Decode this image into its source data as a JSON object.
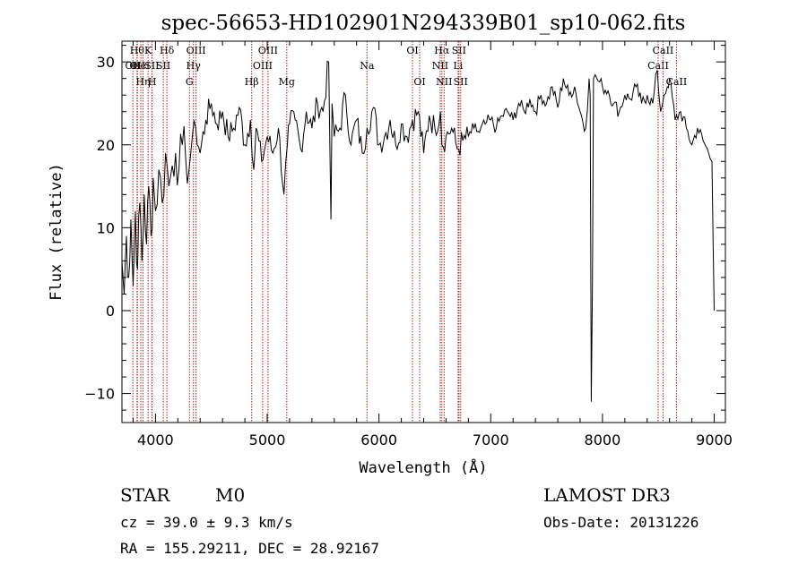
{
  "chart_data": {
    "type": "line",
    "title": "spec-56653-HD102901N294339B01_sp10-062.fits",
    "xlabel": "Wavelength (Å)",
    "ylabel": "Flux (relative)",
    "xlim": [
      3700,
      9100
    ],
    "ylim": [
      -13.5,
      32.5
    ],
    "x_ticks": [
      4000,
      5000,
      6000,
      7000,
      8000,
      9000
    ],
    "y_ticks": [
      -10,
      0,
      10,
      20,
      30
    ],
    "grid": false,
    "legend": "none",
    "series": [
      {
        "x": [
          3700,
          3720,
          3740,
          3760,
          3780,
          3800,
          3820,
          3840,
          3860,
          3880,
          3900,
          3920,
          3940,
          3960,
          3980,
          4000,
          4030,
          4060,
          4090,
          4120,
          4150,
          4180,
          4210,
          4240,
          4270,
          4300,
          4330,
          4360,
          4400,
          4450,
          4500,
          4550,
          4600,
          4650,
          4700,
          4750,
          4800,
          4850,
          4880,
          4900,
          4950,
          5000,
          5050,
          5100,
          5150,
          5180,
          5200,
          5250,
          5300,
          5350,
          5400,
          5450,
          5500,
          5550,
          5570,
          5580,
          5590,
          5600,
          5650,
          5700,
          5750,
          5800,
          5850,
          5893,
          5950,
          6000,
          6050,
          6100,
          6150,
          6200,
          6250,
          6300,
          6350,
          6400,
          6450,
          6500,
          6550,
          6563,
          6600,
          6650,
          6700,
          6750,
          6800,
          6850,
          6900,
          6950,
          7000,
          7050,
          7100,
          7150,
          7200,
          7250,
          7300,
          7350,
          7400,
          7450,
          7500,
          7550,
          7600,
          7650,
          7700,
          7750,
          7800,
          7850,
          7880,
          7890,
          7900,
          7910,
          7920,
          7950,
          8000,
          8050,
          8100,
          8150,
          8200,
          8250,
          8300,
          8350,
          8400,
          8450,
          8490,
          8520,
          8550,
          8580,
          8600,
          8650,
          8700,
          8750,
          8800,
          8850,
          8900,
          8950,
          8980,
          9000
        ],
        "y": [
          6,
          2,
          9,
          4,
          11,
          3,
          12,
          5,
          13,
          6,
          14,
          8,
          15,
          9,
          16,
          12,
          17,
          13,
          19,
          15,
          17.5,
          19,
          17,
          20,
          18.5,
          17,
          21,
          22,
          19,
          23,
          25,
          22.5,
          24,
          21,
          22,
          24.5,
          20,
          23,
          17,
          22,
          18,
          21,
          19,
          22,
          14,
          20,
          22.5,
          23,
          19.5,
          24,
          22,
          25,
          24,
          30,
          11,
          25,
          23,
          21,
          22,
          26,
          20,
          23,
          19,
          22,
          24.5,
          20,
          21,
          23,
          20,
          22.5,
          21,
          23,
          24,
          19,
          23.5,
          22,
          24,
          20,
          21,
          22,
          19.5,
          20.5,
          21,
          22,
          21.5,
          22.5,
          23,
          22,
          23.5,
          24,
          23,
          25,
          24,
          25.5,
          24,
          26,
          25,
          27,
          24.5,
          28,
          26,
          27,
          24,
          22,
          28,
          26,
          -11,
          3,
          28,
          28,
          27,
          26.5,
          25,
          24,
          26,
          25.5,
          27,
          25,
          26,
          25,
          29,
          24,
          26,
          27,
          28,
          23,
          24,
          22,
          20,
          22,
          20.5,
          19,
          18,
          0
        ]
      }
    ],
    "line_marks": [
      {
        "wl": 3798,
        "row": 1,
        "label": "OII"
      },
      {
        "wl": 3835,
        "row": 0,
        "label": "Hθ"
      },
      {
        "wl": 3838,
        "row": 1,
        "label": "OII"
      },
      {
        "wl": 3869,
        "row": 1,
        "label": "HeI"
      },
      {
        "wl": 3889,
        "row": 2,
        "label": "Hη"
      },
      {
        "wl": 3934,
        "row": 0,
        "label": "K"
      },
      {
        "wl": 3968,
        "row": 1,
        "label": "SII"
      },
      {
        "wl": 3970,
        "row": 2,
        "label": "H"
      },
      {
        "wl": 4102,
        "row": 0,
        "label": "Hδ"
      },
      {
        "wl": 4070,
        "row": 1,
        "label": "SII"
      },
      {
        "wl": 4304,
        "row": 2,
        "label": "G"
      },
      {
        "wl": 4340,
        "row": 1,
        "label": "Hγ"
      },
      {
        "wl": 4363,
        "row": 0,
        "label": "OIII"
      },
      {
        "wl": 4861,
        "row": 2,
        "label": "Hβ"
      },
      {
        "wl": 4959,
        "row": 1,
        "label": "OIII"
      },
      {
        "wl": 5007,
        "row": 0,
        "label": "OIII"
      },
      {
        "wl": 5175,
        "row": 2,
        "label": "Mg"
      },
      {
        "wl": 5893,
        "row": 1,
        "label": "Na"
      },
      {
        "wl": 6300,
        "row": 0,
        "label": "OI"
      },
      {
        "wl": 6364,
        "row": 2,
        "label": "OI"
      },
      {
        "wl": 6548,
        "row": 1,
        "label": "NII"
      },
      {
        "wl": 6563,
        "row": 0,
        "label": "Hα"
      },
      {
        "wl": 6583,
        "row": 2,
        "label": "NII"
      },
      {
        "wl": 6708,
        "row": 1,
        "label": "Li"
      },
      {
        "wl": 6716,
        "row": 0,
        "label": "SII"
      },
      {
        "wl": 6731,
        "row": 2,
        "label": "SII"
      },
      {
        "wl": 8498,
        "row": 1,
        "label": "CaII"
      },
      {
        "wl": 8542,
        "row": 0,
        "label": "CaII"
      },
      {
        "wl": 8662,
        "row": 2,
        "label": "CaII"
      }
    ]
  },
  "info": {
    "object_class": "STAR",
    "subclass": "M0",
    "survey": "LAMOST DR3",
    "redshift": "cz = 39.0 ± 9.3 km/s",
    "obs_date": "Obs-Date: 20131226",
    "coords": "RA = 155.29211, DEC =  28.92167"
  }
}
